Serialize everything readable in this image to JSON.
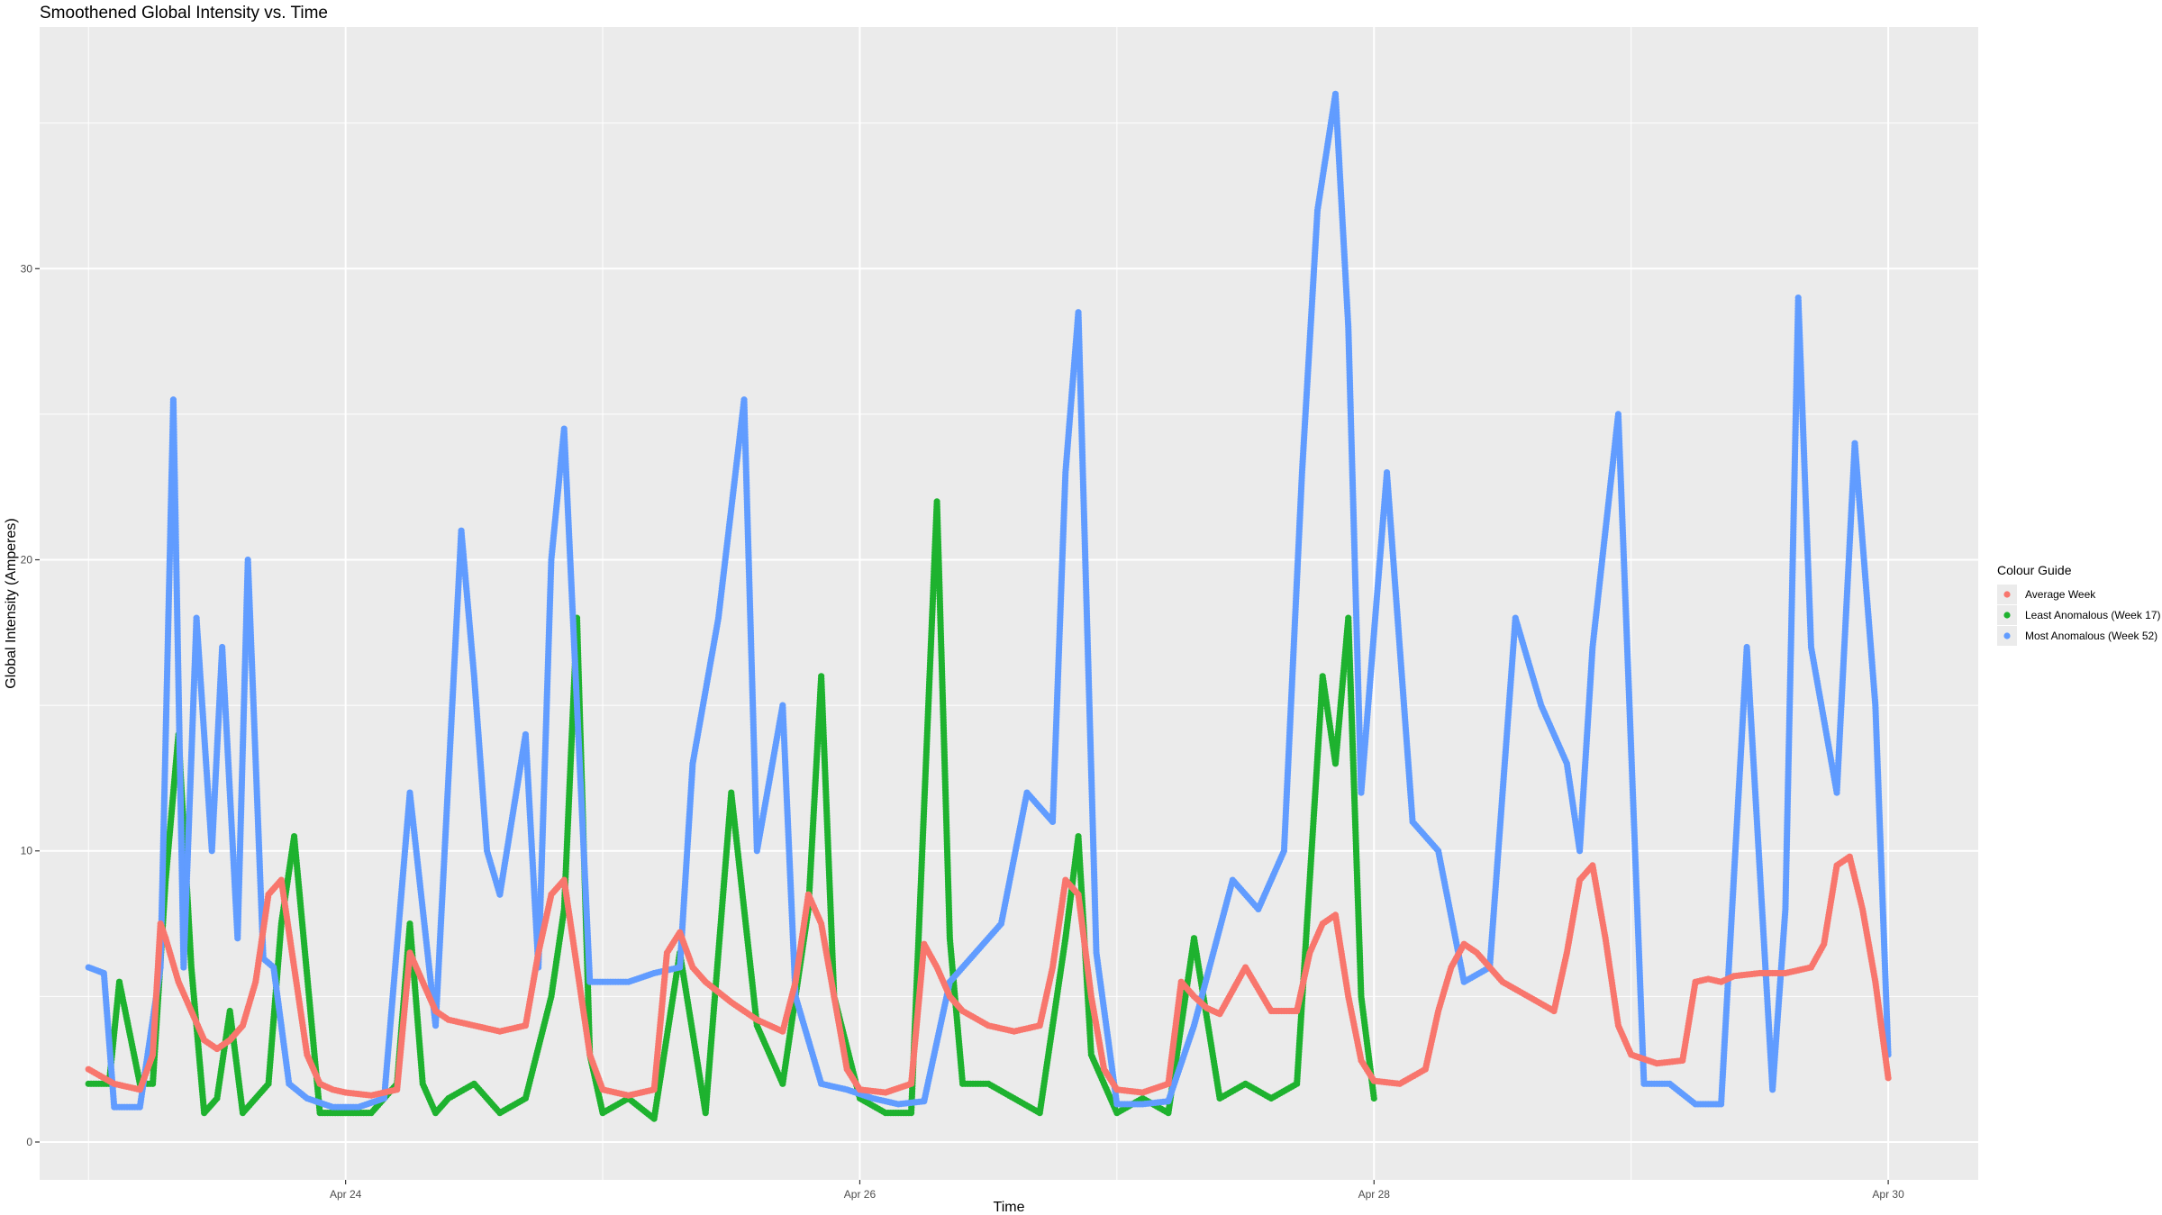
{
  "chart_data": {
    "type": "scatter",
    "title": "Smoothened Global Intensity vs. Time",
    "xlabel": "Time",
    "ylabel": "Global Intensity (Amperes)",
    "x_unit": "days since Apr 23 00:00",
    "xlim": [
      -0.19,
      7.35
    ],
    "ylim": [
      -1.3,
      38.3
    ],
    "x_ticks": [
      {
        "value": 1,
        "label": "Apr 24"
      },
      {
        "value": 3,
        "label": "Apr 26"
      },
      {
        "value": 5,
        "label": "Apr 28"
      },
      {
        "value": 7,
        "label": "Apr 30"
      }
    ],
    "y_ticks": [
      {
        "value": 0,
        "label": "0"
      },
      {
        "value": 10,
        "label": "10"
      },
      {
        "value": 20,
        "label": "20"
      },
      {
        "value": 30,
        "label": "30"
      }
    ],
    "grid": true,
    "legend": {
      "title": "Colour Guide",
      "placement": "right",
      "entries": [
        "Average Week",
        "Least Anomalous (Week 17)",
        "Most Anomalous (Week 52)"
      ]
    },
    "series": [
      {
        "name": "Average Week",
        "color": "#F8766D",
        "x": [
          0.0,
          0.1,
          0.2,
          0.25,
          0.28,
          0.3,
          0.35,
          0.4,
          0.45,
          0.5,
          0.55,
          0.6,
          0.65,
          0.7,
          0.75,
          0.8,
          0.85,
          0.9,
          0.95,
          1.0,
          1.1,
          1.2,
          1.25,
          1.3,
          1.35,
          1.4,
          1.5,
          1.6,
          1.7,
          1.75,
          1.8,
          1.85,
          1.9,
          1.95,
          2.0,
          2.1,
          2.2,
          2.25,
          2.3,
          2.35,
          2.4,
          2.5,
          2.6,
          2.7,
          2.75,
          2.8,
          2.85,
          2.9,
          2.95,
          3.0,
          3.1,
          3.2,
          3.25,
          3.3,
          3.35,
          3.4,
          3.5,
          3.6,
          3.7,
          3.75,
          3.8,
          3.85,
          3.9,
          3.95,
          4.0,
          4.1,
          4.2,
          4.25,
          4.3,
          4.35,
          4.4,
          4.5,
          4.6,
          4.7,
          4.75,
          4.8,
          4.85,
          4.9,
          4.95,
          5.0,
          5.1,
          5.2,
          5.25,
          5.3,
          5.35,
          5.4,
          5.5,
          5.6,
          5.7,
          5.75,
          5.8,
          5.85,
          5.9,
          5.95,
          6.0,
          6.1,
          6.2,
          6.25,
          6.3,
          6.35,
          6.4,
          6.5,
          6.6,
          6.7,
          6.75,
          6.8,
          6.85,
          6.9,
          6.95,
          7.0
        ],
        "y": [
          2.5,
          2.0,
          1.8,
          3.0,
          7.5,
          7.0,
          5.5,
          4.5,
          3.5,
          3.2,
          3.5,
          4.0,
          5.5,
          8.5,
          9.0,
          6.0,
          3.0,
          2.0,
          1.8,
          1.7,
          1.6,
          1.8,
          6.5,
          5.5,
          4.5,
          4.2,
          4.0,
          3.8,
          4.0,
          6.5,
          8.5,
          9.0,
          6.0,
          3.0,
          1.8,
          1.6,
          1.8,
          6.5,
          7.2,
          6.0,
          5.5,
          4.8,
          4.2,
          3.8,
          5.5,
          8.5,
          7.5,
          5.0,
          2.5,
          1.8,
          1.7,
          2.0,
          6.8,
          6.0,
          5.0,
          4.5,
          4.0,
          3.8,
          4.0,
          6.0,
          9.0,
          8.5,
          5.0,
          2.5,
          1.8,
          1.7,
          2.0,
          5.5,
          5.0,
          4.6,
          4.4,
          6.0,
          4.5,
          4.5,
          6.5,
          7.5,
          7.8,
          5.0,
          2.8,
          2.1,
          2.0,
          2.5,
          4.5,
          6.0,
          6.8,
          6.5,
          5.5,
          5.0,
          4.5,
          6.5,
          9.0,
          9.5,
          7.0,
          4.0,
          3.0,
          2.7,
          2.8,
          5.5,
          5.6,
          5.5,
          5.7,
          5.8,
          5.8,
          6.0,
          6.8,
          9.5,
          9.8,
          8.0,
          5.5,
          2.2
        ]
      },
      {
        "name": "Least Anomalous (Week 17)",
        "color": "#1EB22F",
        "x": [
          0.0,
          0.08,
          0.12,
          0.2,
          0.25,
          0.3,
          0.35,
          0.4,
          0.45,
          0.5,
          0.55,
          0.6,
          0.7,
          0.75,
          0.8,
          0.9,
          1.0,
          1.1,
          1.2,
          1.25,
          1.3,
          1.35,
          1.4,
          1.5,
          1.6,
          1.7,
          1.8,
          1.85,
          1.9,
          1.95,
          2.0,
          2.1,
          2.2,
          2.3,
          2.4,
          2.5,
          2.6,
          2.7,
          2.8,
          2.85,
          2.9,
          3.0,
          3.1,
          3.2,
          3.3,
          3.35,
          3.4,
          3.5,
          3.6,
          3.7,
          3.8,
          3.85,
          3.9,
          4.0,
          4.1,
          4.2,
          4.3,
          4.4,
          4.5,
          4.6,
          4.7,
          4.8,
          4.85,
          4.9,
          4.95,
          5.0
        ],
        "y": [
          2.0,
          2.0,
          5.5,
          2.0,
          2.0,
          9.0,
          14.0,
          6.0,
          1.0,
          1.5,
          4.5,
          1.0,
          2.0,
          7.5,
          10.5,
          1.0,
          1.0,
          1.0,
          2.0,
          7.5,
          2.0,
          1.0,
          1.5,
          2.0,
          1.0,
          1.5,
          5.0,
          8.0,
          18.0,
          3.0,
          1.0,
          1.5,
          0.8,
          6.5,
          1.0,
          12.0,
          4.0,
          2.0,
          8.0,
          16.0,
          5.0,
          1.5,
          1.0,
          1.0,
          22.0,
          7.0,
          2.0,
          2.0,
          1.5,
          1.0,
          7.0,
          10.5,
          3.0,
          1.0,
          1.5,
          1.0,
          7.0,
          1.5,
          2.0,
          1.5,
          2.0,
          16.0,
          13.0,
          18.0,
          5.0,
          1.5
        ]
      },
      {
        "name": "Most Anomalous (Week 52)",
        "color": "#619CFF",
        "x": [
          0.0,
          0.06,
          0.1,
          0.2,
          0.28,
          0.33,
          0.37,
          0.42,
          0.48,
          0.52,
          0.58,
          0.62,
          0.68,
          0.72,
          0.78,
          0.85,
          0.95,
          1.05,
          1.15,
          1.25,
          1.35,
          1.45,
          1.5,
          1.55,
          1.6,
          1.7,
          1.75,
          1.8,
          1.85,
          1.95,
          2.0,
          2.1,
          2.2,
          2.3,
          2.35,
          2.45,
          2.55,
          2.6,
          2.7,
          2.75,
          2.85,
          2.95,
          3.05,
          3.15,
          3.25,
          3.35,
          3.45,
          3.55,
          3.65,
          3.75,
          3.8,
          3.85,
          3.92,
          4.0,
          4.1,
          4.2,
          4.3,
          4.45,
          4.55,
          4.65,
          4.72,
          4.78,
          4.85,
          4.9,
          4.95,
          5.05,
          5.15,
          5.25,
          5.35,
          5.45,
          5.55,
          5.65,
          5.75,
          5.8,
          5.85,
          5.95,
          6.05,
          6.15,
          6.25,
          6.35,
          6.45,
          6.55,
          6.6,
          6.65,
          6.7,
          6.8,
          6.87,
          6.95,
          7.0
        ],
        "y": [
          6.0,
          5.8,
          1.2,
          1.2,
          6.0,
          25.5,
          6.0,
          18.0,
          10.0,
          17.0,
          7.0,
          20.0,
          6.3,
          6.0,
          2.0,
          1.5,
          1.2,
          1.2,
          1.5,
          12.0,
          4.0,
          21.0,
          16.0,
          10.0,
          8.5,
          14.0,
          6.0,
          20.0,
          24.5,
          5.5,
          5.5,
          5.5,
          5.8,
          6.0,
          13.0,
          18.0,
          25.5,
          10.0,
          15.0,
          5.0,
          2.0,
          1.8,
          1.5,
          1.3,
          1.4,
          5.5,
          6.5,
          7.5,
          12.0,
          11.0,
          23.0,
          28.5,
          6.5,
          1.3,
          1.3,
          1.4,
          4.0,
          9.0,
          8.0,
          10.0,
          23.0,
          32.0,
          36.0,
          28.0,
          12.0,
          23.0,
          11.0,
          10.0,
          5.5,
          6.0,
          18.0,
          15.0,
          13.0,
          10.0,
          17.0,
          25.0,
          2.0,
          2.0,
          1.3,
          1.3,
          17.0,
          1.8,
          8.0,
          29.0,
          17.0,
          12.0,
          24.0,
          15.0,
          3.0
        ]
      }
    ]
  }
}
